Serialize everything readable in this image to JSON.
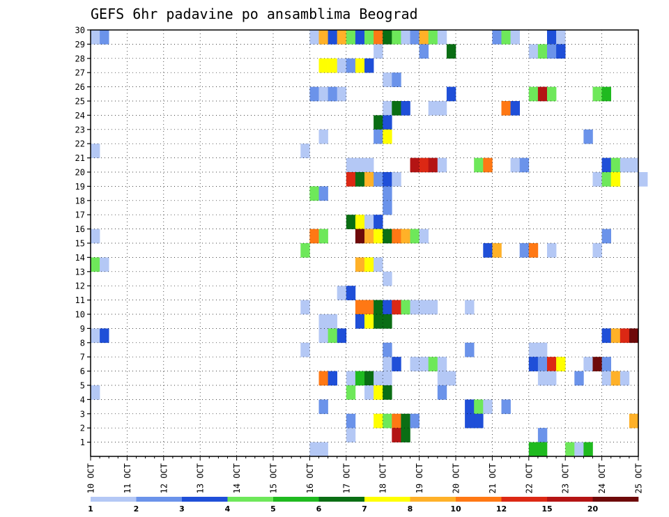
{
  "chart_data": {
    "type": "heatmap",
    "title": "GEFS 6hr padavine po ansamblima Beograd",
    "grid": "dotted",
    "x_ticks": [
      "10 OCT",
      "11 OCT",
      "12 OCT",
      "13 OCT",
      "14 OCT",
      "15 OCT",
      "16 OCT",
      "17 OCT",
      "18 OCT",
      "19 OCT",
      "20 OCT",
      "21 OCT",
      "22 OCT",
      "23 OCT",
      "24 OCT",
      "25 OCT"
    ],
    "y_ticks": [
      "1",
      "2",
      "3",
      "4",
      "5",
      "6",
      "7",
      "8",
      "9",
      "10",
      "11",
      "12",
      "13",
      "14",
      "15",
      "16",
      "17",
      "18",
      "19",
      "20",
      "21",
      "22",
      "23",
      "24",
      "25",
      "26",
      "27",
      "28",
      "29",
      "30"
    ],
    "x_step_hours": 6,
    "colorbar": {
      "labels": [
        "1",
        "2",
        "3",
        "4",
        "5",
        "6",
        "7",
        "8",
        "10",
        "12",
        "15",
        "20"
      ],
      "colors": [
        "#b4c8f5",
        "#6b93ea",
        "#1f4fd8",
        "#6ee85a",
        "#1fba1f",
        "#0a6e14",
        "#ffff00",
        "#ffb128",
        "#ff7814",
        "#dc2814",
        "#b41414",
        "#6e0a0a"
      ]
    },
    "cells": [
      [
        "10 OCT 00Z",
        30,
        1
      ],
      [
        "10 OCT 06Z",
        30,
        2
      ],
      [
        "16 OCT 00Z",
        30,
        1
      ],
      [
        "16 OCT 06Z",
        30,
        8
      ],
      [
        "16 OCT 12Z",
        30,
        3
      ],
      [
        "16 OCT 18Z",
        30,
        8
      ],
      [
        "17 OCT 00Z",
        30,
        4
      ],
      [
        "17 OCT 06Z",
        30,
        3
      ],
      [
        "17 OCT 12Z",
        30,
        4
      ],
      [
        "17 OCT 18Z",
        30,
        10
      ],
      [
        "18 OCT 00Z",
        30,
        6
      ],
      [
        "18 OCT 06Z",
        30,
        4
      ],
      [
        "18 OCT 12Z",
        30,
        1
      ],
      [
        "18 OCT 18Z",
        30,
        2
      ],
      [
        "19 OCT 00Z",
        30,
        8
      ],
      [
        "19 OCT 06Z",
        30,
        4
      ],
      [
        "19 OCT 12Z",
        30,
        1
      ],
      [
        "21 OCT 00Z",
        30,
        2
      ],
      [
        "21 OCT 06Z",
        30,
        4
      ],
      [
        "21 OCT 12Z",
        30,
        1
      ],
      [
        "22 OCT 12Z",
        30,
        3
      ],
      [
        "22 OCT 18Z",
        30,
        1
      ],
      [
        "17 OCT 18Z",
        29,
        1
      ],
      [
        "19 OCT 00Z",
        29,
        2
      ],
      [
        "19 OCT 18Z",
        29,
        6
      ],
      [
        "22 OCT 00Z",
        29,
        1
      ],
      [
        "22 OCT 06Z",
        29,
        4
      ],
      [
        "22 OCT 12Z",
        29,
        2
      ],
      [
        "22 OCT 18Z",
        29,
        3
      ],
      [
        "16 OCT 06Z",
        28,
        7
      ],
      [
        "16 OCT 12Z",
        28,
        7
      ],
      [
        "16 OCT 18Z",
        28,
        1
      ],
      [
        "17 OCT 00Z",
        28,
        2
      ],
      [
        "17 OCT 06Z",
        28,
        7
      ],
      [
        "17 OCT 12Z",
        28,
        3
      ],
      [
        "18 OCT 00Z",
        27,
        1
      ],
      [
        "18 OCT 06Z",
        27,
        2
      ],
      [
        "16 OCT 00Z",
        26,
        2
      ],
      [
        "16 OCT 06Z",
        26,
        1
      ],
      [
        "16 OCT 12Z",
        26,
        2
      ],
      [
        "16 OCT 18Z",
        26,
        1
      ],
      [
        "19 OCT 18Z",
        26,
        3
      ],
      [
        "22 OCT 00Z",
        26,
        4
      ],
      [
        "22 OCT 06Z",
        26,
        15
      ],
      [
        "22 OCT 12Z",
        26,
        4
      ],
      [
        "23 OCT 18Z",
        26,
        4
      ],
      [
        "24 OCT 00Z",
        26,
        5
      ],
      [
        "18 OCT 00Z",
        25,
        1
      ],
      [
        "18 OCT 06Z",
        25,
        6
      ],
      [
        "18 OCT 12Z",
        25,
        3
      ],
      [
        "19 OCT 06Z",
        25,
        1
      ],
      [
        "19 OCT 12Z",
        25,
        1
      ],
      [
        "21 OCT 06Z",
        25,
        10
      ],
      [
        "21 OCT 12Z",
        25,
        3
      ],
      [
        "17 OCT 18Z",
        24,
        6
      ],
      [
        "18 OCT 00Z",
        24,
        3
      ],
      [
        "16 OCT 06Z",
        23,
        1
      ],
      [
        "17 OCT 18Z",
        23,
        2
      ],
      [
        "18 OCT 00Z",
        23,
        7
      ],
      [
        "23 OCT 12Z",
        23,
        2
      ],
      [
        "10 OCT 00Z",
        22,
        1
      ],
      [
        "15 OCT 18Z",
        22,
        1
      ],
      [
        "17 OCT 00Z",
        21,
        1
      ],
      [
        "17 OCT 06Z",
        21,
        1
      ],
      [
        "17 OCT 12Z",
        21,
        1
      ],
      [
        "18 OCT 18Z",
        21,
        15
      ],
      [
        "19 OCT 00Z",
        21,
        12
      ],
      [
        "19 OCT 06Z",
        21,
        15
      ],
      [
        "19 OCT 12Z",
        21,
        1
      ],
      [
        "20 OCT 12Z",
        21,
        4
      ],
      [
        "20 OCT 18Z",
        21,
        10
      ],
      [
        "21 OCT 12Z",
        21,
        1
      ],
      [
        "21 OCT 18Z",
        21,
        2
      ],
      [
        "24 OCT 00Z",
        21,
        3
      ],
      [
        "24 OCT 06Z",
        21,
        4
      ],
      [
        "24 OCT 12Z",
        21,
        1
      ],
      [
        "24 OCT 18Z",
        21,
        1
      ],
      [
        "17 OCT 00Z",
        20,
        12
      ],
      [
        "17 OCT 06Z",
        20,
        6
      ],
      [
        "17 OCT 12Z",
        20,
        8
      ],
      [
        "17 OCT 18Z",
        20,
        2
      ],
      [
        "18 OCT 00Z",
        20,
        3
      ],
      [
        "18 OCT 06Z",
        20,
        1
      ],
      [
        "23 OCT 18Z",
        20,
        1
      ],
      [
        "24 OCT 00Z",
        20,
        4
      ],
      [
        "24 OCT 06Z",
        20,
        7
      ],
      [
        "25 OCT 00Z",
        20,
        1
      ],
      [
        "16 OCT 00Z",
        19,
        4
      ],
      [
        "16 OCT 06Z",
        19,
        2
      ],
      [
        "18 OCT 00Z",
        19,
        2
      ],
      [
        "18 OCT 00Z",
        18,
        2
      ],
      [
        "17 OCT 00Z",
        17,
        6
      ],
      [
        "17 OCT 06Z",
        17,
        7
      ],
      [
        "17 OCT 12Z",
        17,
        1
      ],
      [
        "17 OCT 18Z",
        17,
        3
      ],
      [
        "10 OCT 00Z",
        16,
        1
      ],
      [
        "16 OCT 00Z",
        16,
        10
      ],
      [
        "16 OCT 06Z",
        16,
        4
      ],
      [
        "17 OCT 06Z",
        16,
        20
      ],
      [
        "17 OCT 12Z",
        16,
        8
      ],
      [
        "17 OCT 18Z",
        16,
        7
      ],
      [
        "18 OCT 00Z",
        16,
        6
      ],
      [
        "18 OCT 06Z",
        16,
        10
      ],
      [
        "18 OCT 12Z",
        16,
        8
      ],
      [
        "18 OCT 18Z",
        16,
        4
      ],
      [
        "19 OCT 00Z",
        16,
        1
      ],
      [
        "24 OCT 00Z",
        16,
        2
      ],
      [
        "15 OCT 18Z",
        15,
        4
      ],
      [
        "20 OCT 18Z",
        15,
        3
      ],
      [
        "21 OCT 00Z",
        15,
        8
      ],
      [
        "21 OCT 18Z",
        15,
        2
      ],
      [
        "22 OCT 00Z",
        15,
        10
      ],
      [
        "22 OCT 12Z",
        15,
        1
      ],
      [
        "23 OCT 18Z",
        15,
        1
      ],
      [
        "10 OCT 00Z",
        14,
        4
      ],
      [
        "10 OCT 06Z",
        14,
        1
      ],
      [
        "17 OCT 06Z",
        14,
        8
      ],
      [
        "17 OCT 12Z",
        14,
        7
      ],
      [
        "17 OCT 18Z",
        14,
        1
      ],
      [
        "18 OCT 00Z",
        13,
        1
      ],
      [
        "16 OCT 18Z",
        12,
        1
      ],
      [
        "17 OCT 00Z",
        12,
        3
      ],
      [
        "15 OCT 18Z",
        11,
        1
      ],
      [
        "17 OCT 06Z",
        11,
        10
      ],
      [
        "17 OCT 12Z",
        11,
        10
      ],
      [
        "17 OCT 18Z",
        11,
        6
      ],
      [
        "18 OCT 00Z",
        11,
        3
      ],
      [
        "18 OCT 06Z",
        11,
        12
      ],
      [
        "18 OCT 12Z",
        11,
        4
      ],
      [
        "18 OCT 18Z",
        11,
        1
      ],
      [
        "19 OCT 00Z",
        11,
        1
      ],
      [
        "19 OCT 06Z",
        11,
        1
      ],
      [
        "20 OCT 06Z",
        11,
        1
      ],
      [
        "16 OCT 06Z",
        10,
        1
      ],
      [
        "16 OCT 12Z",
        10,
        1
      ],
      [
        "17 OCT 06Z",
        10,
        3
      ],
      [
        "17 OCT 12Z",
        10,
        7
      ],
      [
        "17 OCT 18Z",
        10,
        6
      ],
      [
        "18 OCT 00Z",
        10,
        6
      ],
      [
        "10 OCT 00Z",
        9,
        1
      ],
      [
        "10 OCT 06Z",
        9,
        3
      ],
      [
        "16 OCT 06Z",
        9,
        1
      ],
      [
        "16 OCT 12Z",
        9,
        4
      ],
      [
        "16 OCT 18Z",
        9,
        3
      ],
      [
        "24 OCT 00Z",
        9,
        3
      ],
      [
        "24 OCT 06Z",
        9,
        8
      ],
      [
        "24 OCT 12Z",
        9,
        12
      ],
      [
        "24 OCT 18Z",
        9,
        20
      ],
      [
        "15 OCT 18Z",
        8,
        1
      ],
      [
        "18 OCT 00Z",
        8,
        2
      ],
      [
        "20 OCT 06Z",
        8,
        2
      ],
      [
        "22 OCT 00Z",
        8,
        1
      ],
      [
        "22 OCT 06Z",
        8,
        1
      ],
      [
        "18 OCT 00Z",
        7,
        1
      ],
      [
        "18 OCT 06Z",
        7,
        3
      ],
      [
        "18 OCT 18Z",
        7,
        1
      ],
      [
        "19 OCT 00Z",
        7,
        1
      ],
      [
        "19 OCT 06Z",
        7,
        4
      ],
      [
        "19 OCT 12Z",
        7,
        1
      ],
      [
        "22 OCT 00Z",
        7,
        3
      ],
      [
        "22 OCT 06Z",
        7,
        2
      ],
      [
        "22 OCT 12Z",
        7,
        12
      ],
      [
        "22 OCT 18Z",
        7,
        7
      ],
      [
        "23 OCT 12Z",
        7,
        1
      ],
      [
        "23 OCT 18Z",
        7,
        20
      ],
      [
        "24 OCT 00Z",
        7,
        2
      ],
      [
        "16 OCT 06Z",
        6,
        10
      ],
      [
        "16 OCT 12Z",
        6,
        3
      ],
      [
        "17 OCT 00Z",
        6,
        1
      ],
      [
        "17 OCT 06Z",
        6,
        5
      ],
      [
        "17 OCT 12Z",
        6,
        6
      ],
      [
        "17 OCT 18Z",
        6,
        1
      ],
      [
        "18 OCT 00Z",
        6,
        1
      ],
      [
        "19 OCT 12Z",
        6,
        1
      ],
      [
        "19 OCT 18Z",
        6,
        1
      ],
      [
        "22 OCT 06Z",
        6,
        1
      ],
      [
        "22 OCT 12Z",
        6,
        1
      ],
      [
        "23 OCT 06Z",
        6,
        2
      ],
      [
        "24 OCT 00Z",
        6,
        1
      ],
      [
        "24 OCT 06Z",
        6,
        8
      ],
      [
        "24 OCT 12Z",
        6,
        1
      ],
      [
        "10 OCT 00Z",
        5,
        1
      ],
      [
        "17 OCT 00Z",
        5,
        4
      ],
      [
        "17 OCT 12Z",
        5,
        1
      ],
      [
        "17 OCT 18Z",
        5,
        7
      ],
      [
        "18 OCT 00Z",
        5,
        6
      ],
      [
        "19 OCT 12Z",
        5,
        2
      ],
      [
        "16 OCT 06Z",
        4,
        2
      ],
      [
        "20 OCT 06Z",
        4,
        3
      ],
      [
        "20 OCT 12Z",
        4,
        4
      ],
      [
        "20 OCT 18Z",
        4,
        1
      ],
      [
        "21 OCT 06Z",
        4,
        2
      ],
      [
        "17 OCT 00Z",
        3,
        2
      ],
      [
        "17 OCT 18Z",
        3,
        7
      ],
      [
        "18 OCT 00Z",
        3,
        4
      ],
      [
        "18 OCT 06Z",
        3,
        10
      ],
      [
        "18 OCT 12Z",
        3,
        6
      ],
      [
        "18 OCT 18Z",
        3,
        2
      ],
      [
        "20 OCT 06Z",
        3,
        3
      ],
      [
        "20 OCT 12Z",
        3,
        3
      ],
      [
        "24 OCT 18Z",
        3,
        8
      ],
      [
        "17 OCT 00Z",
        2,
        1
      ],
      [
        "18 OCT 06Z",
        2,
        15
      ],
      [
        "18 OCT 12Z",
        2,
        6
      ],
      [
        "22 OCT 06Z",
        2,
        2
      ],
      [
        "16 OCT 00Z",
        1,
        1
      ],
      [
        "16 OCT 06Z",
        1,
        1
      ],
      [
        "22 OCT 00Z",
        1,
        5
      ],
      [
        "22 OCT 06Z",
        1,
        5
      ],
      [
        "23 OCT 00Z",
        1,
        4
      ],
      [
        "23 OCT 06Z",
        1,
        1
      ],
      [
        "23 OCT 12Z",
        1,
        5
      ]
    ]
  }
}
